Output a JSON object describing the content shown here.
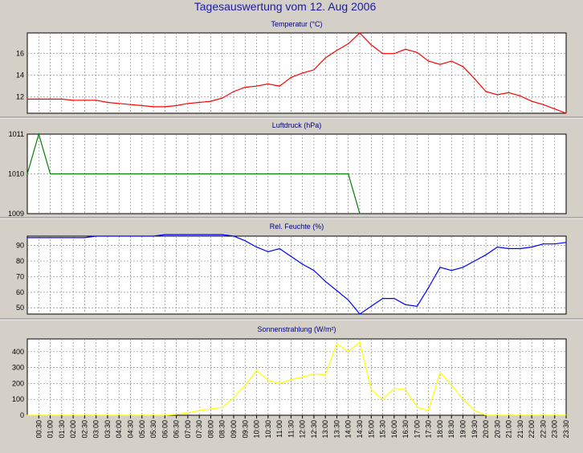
{
  "title": "Tagesauswertung vom 12. Aug 2006",
  "colors": {
    "background": "#d4d0c8",
    "plot_background": "#ffffff",
    "grid": "#8c8c8c",
    "title": "#1a1aa6"
  },
  "x_ticks": [
    "00:30",
    "01:00",
    "01:30",
    "02:00",
    "02:30",
    "03:00",
    "03:30",
    "04:00",
    "04:30",
    "05:00",
    "05:30",
    "06:00",
    "06:30",
    "07:00",
    "07:30",
    "08:00",
    "08:30",
    "09:00",
    "09:30",
    "10:00",
    "10:30",
    "11:00",
    "11:30",
    "12:00",
    "12:30",
    "13:00",
    "13:30",
    "14:00",
    "14:30",
    "15:00",
    "15:30",
    "16:00",
    "16:30",
    "17:00",
    "17:30",
    "18:00",
    "18:30",
    "19:00",
    "19:30",
    "20:00",
    "20:30",
    "21:00",
    "21:30",
    "22:00",
    "22:30",
    "23:00",
    "23:30"
  ],
  "chart_data": [
    {
      "type": "line",
      "title": "Temperatur (°C)",
      "color": "#ff0000",
      "ylim": [
        10.5,
        17.9
      ],
      "yticks": [
        12,
        14,
        16
      ],
      "grid": true,
      "x": [
        "00:00",
        "00:30",
        "01:00",
        "01:30",
        "02:00",
        "02:30",
        "03:00",
        "03:30",
        "04:00",
        "04:30",
        "05:00",
        "05:30",
        "06:00",
        "06:30",
        "07:00",
        "07:30",
        "08:00",
        "08:30",
        "09:00",
        "09:30",
        "10:00",
        "10:30",
        "11:00",
        "11:30",
        "12:00",
        "12:30",
        "13:00",
        "13:30",
        "14:00",
        "14:30",
        "15:00",
        "15:30",
        "16:00",
        "16:30",
        "17:00",
        "17:30",
        "18:00",
        "18:30",
        "19:00",
        "19:30",
        "20:00",
        "20:30",
        "21:00",
        "21:30",
        "22:00",
        "22:30",
        "23:00",
        "23:30"
      ],
      "values": [
        11.8,
        11.8,
        11.8,
        11.8,
        11.7,
        11.7,
        11.7,
        11.5,
        11.4,
        11.3,
        11.2,
        11.1,
        11.1,
        11.2,
        11.4,
        11.5,
        11.6,
        11.9,
        12.5,
        12.9,
        13.0,
        13.2,
        13.0,
        13.8,
        14.2,
        14.5,
        15.6,
        16.3,
        16.9,
        17.9,
        16.8,
        16.0,
        16.0,
        16.4,
        16.1,
        15.3,
        15.0,
        15.3,
        14.8,
        13.7,
        12.5,
        12.2,
        12.4,
        12.1,
        11.6,
        11.3,
        10.9,
        10.5
      ]
    },
    {
      "type": "line",
      "title": "Luftdruck (hPa)",
      "color": "#008000",
      "ylim": [
        1009,
        1011
      ],
      "yticks": [
        1009,
        1010,
        1011
      ],
      "grid": true,
      "x": [
        "00:00",
        "00:30",
        "01:00",
        "01:30",
        "02:00",
        "02:30",
        "03:00",
        "03:30",
        "04:00",
        "04:30",
        "05:00",
        "05:30",
        "06:00",
        "06:30",
        "07:00",
        "07:30",
        "08:00",
        "08:30",
        "09:00",
        "09:30",
        "10:00",
        "10:30",
        "11:00",
        "11:30",
        "12:00",
        "12:30",
        "13:00",
        "13:30",
        "14:00",
        "14:30"
      ],
      "values": [
        1010,
        1011,
        1010,
        1010,
        1010,
        1010,
        1010,
        1010,
        1010,
        1010,
        1010,
        1010,
        1010,
        1010,
        1010,
        1010,
        1010,
        1010,
        1010,
        1010,
        1010,
        1010,
        1010,
        1010,
        1010,
        1010,
        1010,
        1010,
        1010,
        1009
      ]
    },
    {
      "type": "line",
      "title": "Rel. Feuchte (%)",
      "color": "#0000ff",
      "ylim": [
        46,
        96
      ],
      "yticks": [
        50,
        60,
        70,
        80,
        90
      ],
      "grid": true,
      "x": [
        "00:00",
        "00:30",
        "01:00",
        "01:30",
        "02:00",
        "02:30",
        "03:00",
        "03:30",
        "04:00",
        "04:30",
        "05:00",
        "05:30",
        "06:00",
        "06:30",
        "07:00",
        "07:30",
        "08:00",
        "08:30",
        "09:00",
        "09:30",
        "10:00",
        "10:30",
        "11:00",
        "11:30",
        "12:00",
        "12:30",
        "13:00",
        "13:30",
        "14:00",
        "14:30",
        "15:00",
        "15:30",
        "16:00",
        "16:30",
        "17:00",
        "17:30",
        "18:00",
        "18:30",
        "19:00",
        "19:30",
        "20:00",
        "20:30",
        "21:00",
        "21:30",
        "22:00",
        "22:30",
        "23:00",
        "23:30"
      ],
      "values": [
        95,
        95,
        95,
        95,
        95,
        95,
        96,
        96,
        96,
        96,
        96,
        96,
        97,
        97,
        97,
        97,
        97,
        97,
        96,
        93,
        89,
        86,
        88,
        83,
        78,
        74,
        67,
        61,
        55,
        46,
        51,
        56,
        56,
        52,
        51,
        63,
        76,
        74,
        76,
        80,
        84,
        89,
        88,
        88,
        89,
        91,
        91,
        92
      ]
    },
    {
      "type": "line",
      "title": "Sonnenstrahlung (W/m²)",
      "color": "#ffff00",
      "ylim": [
        0,
        480
      ],
      "yticks": [
        0,
        100,
        200,
        300,
        400
      ],
      "grid": true,
      "x": [
        "00:00",
        "00:30",
        "01:00",
        "01:30",
        "02:00",
        "02:30",
        "03:00",
        "03:30",
        "04:00",
        "04:30",
        "05:00",
        "05:30",
        "06:00",
        "06:30",
        "07:00",
        "07:30",
        "08:00",
        "08:30",
        "09:00",
        "09:30",
        "10:00",
        "10:30",
        "11:00",
        "11:30",
        "12:00",
        "12:30",
        "13:00",
        "13:30",
        "14:00",
        "14:30",
        "15:00",
        "15:30",
        "16:00",
        "16:30",
        "17:00",
        "17:30",
        "18:00",
        "18:30",
        "19:00",
        "19:30",
        "20:00",
        "20:30",
        "21:00",
        "21:30",
        "22:00",
        "22:30",
        "23:00",
        "23:30"
      ],
      "values": [
        0,
        0,
        0,
        0,
        0,
        0,
        0,
        0,
        0,
        0,
        0,
        0,
        0,
        5,
        15,
        30,
        40,
        50,
        110,
        190,
        280,
        220,
        200,
        225,
        240,
        260,
        255,
        450,
        400,
        460,
        160,
        100,
        170,
        160,
        50,
        30,
        270,
        190,
        100,
        30,
        0,
        0,
        0,
        0,
        0,
        0,
        0,
        0
      ]
    }
  ]
}
